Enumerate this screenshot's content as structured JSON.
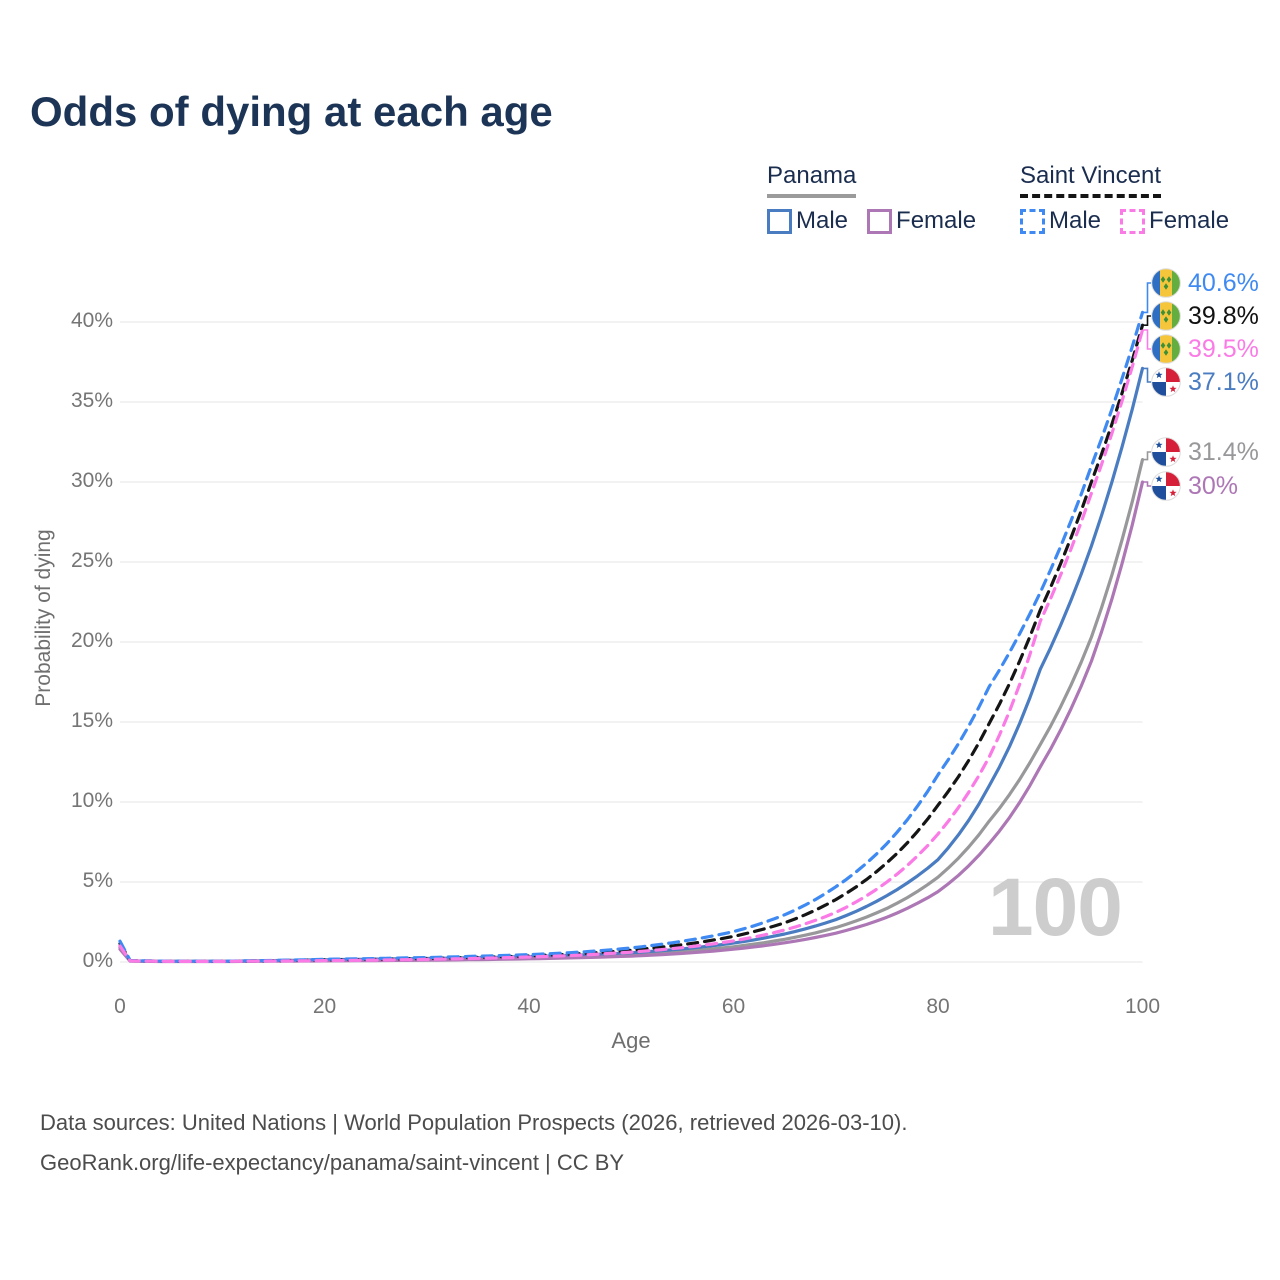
{
  "header": {
    "title": "Odds of dying at each age"
  },
  "legend": {
    "groups": [
      {
        "title": "Panama",
        "underline": "solid",
        "underline_color": "#9b9b9b",
        "items": [
          {
            "label": "Male",
            "color": "#4a7cc1",
            "dashed": false
          },
          {
            "label": "Female",
            "color": "#ad77b5",
            "dashed": false
          }
        ]
      },
      {
        "title": "Saint Vincent",
        "underline": "dashed",
        "underline_color": "#151515",
        "items": [
          {
            "label": "Male",
            "color": "#3f8af2",
            "dashed": true
          },
          {
            "label": "Female",
            "color": "#fb7be6",
            "dashed": true
          }
        ]
      }
    ]
  },
  "chart_data": {
    "type": "line",
    "title": "Odds of dying at each age",
    "xlabel": "Age",
    "ylabel": "Probability of dying",
    "x_ticks": [
      0,
      20,
      40,
      60,
      80,
      100
    ],
    "y_tick_labels": [
      "0%",
      "5%",
      "10%",
      "15%",
      "20%",
      "25%",
      "30%",
      "35%",
      "40%"
    ],
    "y_tick_values": [
      0,
      5,
      10,
      15,
      20,
      25,
      30,
      35,
      40
    ],
    "xlim": [
      0,
      100
    ],
    "ylim_pct": [
      0,
      42.5
    ],
    "grid": "horizontal-only",
    "legend_position": "top-right",
    "ages": [
      0,
      1,
      5,
      10,
      15,
      20,
      25,
      30,
      35,
      40,
      45,
      50,
      55,
      60,
      65,
      70,
      75,
      80,
      85,
      90,
      95,
      100
    ],
    "series": [
      {
        "id": "panama-total",
        "name": "Panama (both sexes)",
        "country": "Panama",
        "color": "#98989b",
        "dashed": false,
        "flag": "panama",
        "end_label": "31.4%",
        "values_pct": [
          0.9,
          0.06,
          0.035,
          0.04,
          0.07,
          0.1,
          0.13,
          0.16,
          0.2,
          0.26,
          0.34,
          0.46,
          0.66,
          0.95,
          1.42,
          2.15,
          3.35,
          5.3,
          8.8,
          13.6,
          20.3,
          31.4
        ]
      },
      {
        "id": "panama-female",
        "name": "Panama Female",
        "country": "Panama",
        "color": "#ad77b5",
        "dashed": false,
        "flag": "panama",
        "end_label": "30%",
        "values_pct": [
          0.8,
          0.05,
          0.03,
          0.03,
          0.05,
          0.07,
          0.09,
          0.11,
          0.15,
          0.2,
          0.27,
          0.37,
          0.54,
          0.8,
          1.2,
          1.8,
          2.8,
          4.4,
          7.4,
          12.2,
          18.8,
          30.0
        ]
      },
      {
        "id": "panama-male",
        "name": "Panama Male",
        "country": "Panama",
        "color": "#4a7cc1",
        "dashed": false,
        "flag": "panama",
        "end_label": "37.1%",
        "values_pct": [
          1.0,
          0.07,
          0.04,
          0.045,
          0.09,
          0.14,
          0.18,
          0.22,
          0.27,
          0.34,
          0.44,
          0.58,
          0.82,
          1.18,
          1.75,
          2.65,
          4.15,
          6.4,
          11.0,
          18.3,
          26.0,
          37.1
        ]
      },
      {
        "id": "saint-vincent-total",
        "name": "Saint Vincent (both sexes)",
        "country": "Saint Vincent",
        "color": "#151515",
        "dashed": true,
        "flag": "saint-vincent",
        "end_label": "39.8%",
        "values_pct": [
          1.15,
          0.08,
          0.045,
          0.045,
          0.08,
          0.13,
          0.17,
          0.22,
          0.29,
          0.38,
          0.52,
          0.74,
          1.08,
          1.6,
          2.45,
          3.9,
          6.2,
          9.8,
          14.9,
          22.0,
          30.0,
          39.8
        ]
      },
      {
        "id": "saint-vincent-male",
        "name": "Saint Vincent Male",
        "country": "Saint Vincent",
        "color": "#3f8af2",
        "dashed": true,
        "flag": "saint-vincent",
        "end_label": "40.6%",
        "values_pct": [
          1.3,
          0.09,
          0.05,
          0.05,
          0.1,
          0.17,
          0.22,
          0.28,
          0.36,
          0.46,
          0.62,
          0.88,
          1.3,
          1.9,
          2.95,
          4.7,
          7.4,
          11.7,
          17.2,
          23.1,
          31.0,
          40.6
        ]
      },
      {
        "id": "saint-vincent-female",
        "name": "Saint Vincent Female",
        "country": "Saint Vincent",
        "color": "#fb7be6",
        "dashed": true,
        "flag": "saint-vincent",
        "end_label": "39.5%",
        "values_pct": [
          1.0,
          0.07,
          0.04,
          0.04,
          0.06,
          0.09,
          0.12,
          0.16,
          0.23,
          0.31,
          0.43,
          0.62,
          0.9,
          1.32,
          2.0,
          3.1,
          5.0,
          8.0,
          12.8,
          21.3,
          29.3,
          39.5
        ]
      }
    ]
  },
  "watermark": {
    "text": "100"
  },
  "footer": {
    "line1": "Data sources: United Nations | World Population Prospects (2026, retrieved 2026-03-10).",
    "line2": "GeoRank.org/life-expectancy/panama/saint-vincent | CC BY"
  }
}
